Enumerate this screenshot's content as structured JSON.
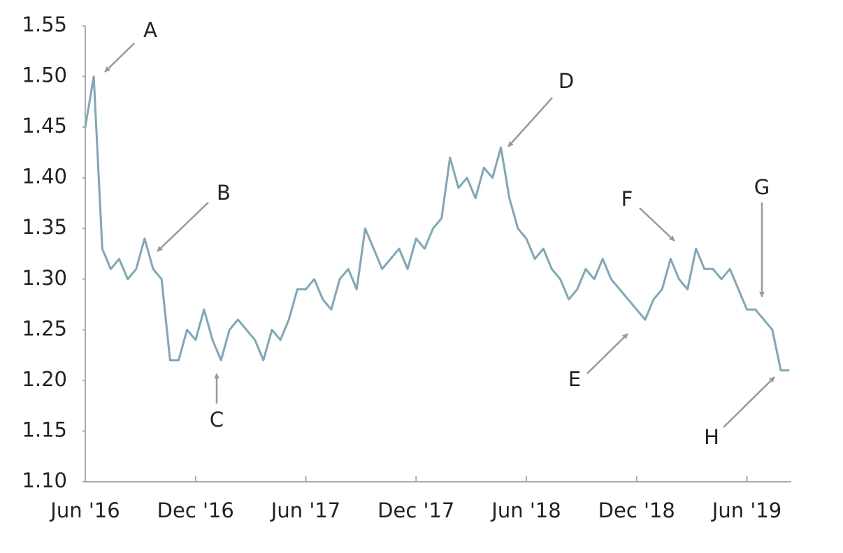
{
  "chart_data": {
    "type": "line",
    "categories": [
      "Jun '16",
      null,
      null,
      null,
      null,
      null,
      null,
      null,
      null,
      null,
      null,
      null,
      null,
      "Dec '16",
      null,
      null,
      null,
      null,
      null,
      null,
      null,
      null,
      null,
      null,
      null,
      null,
      "Jun '17",
      null,
      null,
      null,
      null,
      null,
      null,
      null,
      null,
      null,
      null,
      null,
      null,
      "Dec '17",
      null,
      null,
      null,
      null,
      null,
      null,
      null,
      null,
      null,
      null,
      null,
      null,
      "Jun '18",
      null,
      null,
      null,
      null,
      null,
      null,
      null,
      null,
      null,
      null,
      null,
      null,
      "Dec '18",
      null,
      null,
      null,
      null,
      null,
      null,
      null,
      null,
      null,
      null,
      null,
      null,
      "Jun '19",
      null,
      null,
      null,
      null,
      null
    ],
    "values": [
      1.45,
      1.5,
      1.33,
      1.31,
      1.32,
      1.3,
      1.31,
      1.34,
      1.31,
      1.3,
      1.22,
      1.22,
      1.25,
      1.24,
      1.27,
      1.24,
      1.22,
      1.25,
      1.26,
      1.25,
      1.24,
      1.22,
      1.25,
      1.24,
      1.26,
      1.29,
      1.29,
      1.3,
      1.28,
      1.27,
      1.3,
      1.31,
      1.29,
      1.35,
      1.33,
      1.31,
      1.32,
      1.33,
      1.31,
      1.34,
      1.33,
      1.35,
      1.36,
      1.42,
      1.39,
      1.4,
      1.38,
      1.41,
      1.4,
      1.43,
      1.38,
      1.35,
      1.34,
      1.32,
      1.33,
      1.31,
      1.3,
      1.28,
      1.29,
      1.31,
      1.3,
      1.32,
      1.3,
      1.29,
      1.28,
      1.27,
      1.26,
      1.28,
      1.29,
      1.32,
      1.3,
      1.29,
      1.33,
      1.31,
      1.31,
      1.3,
      1.31,
      1.29,
      1.27,
      1.27,
      1.26,
      1.25,
      1.21,
      1.21
    ],
    "color": "#7fa7b8",
    "ylim": [
      1.1,
      1.55
    ],
    "yticks": [
      {
        "value": 1.1,
        "label": "1.10"
      },
      1.15,
      {
        "value": 1.2,
        "label": "1.20"
      },
      1.25,
      {
        "value": 1.3,
        "label": "1.30"
      },
      1.35,
      {
        "value": 1.4,
        "label": "1.40"
      },
      1.45,
      {
        "value": 1.5,
        "label": "1.50"
      },
      1.55
    ],
    "annotations": [
      "A",
      "B",
      "C",
      "D",
      "E",
      "F",
      "G",
      "H"
    ]
  }
}
